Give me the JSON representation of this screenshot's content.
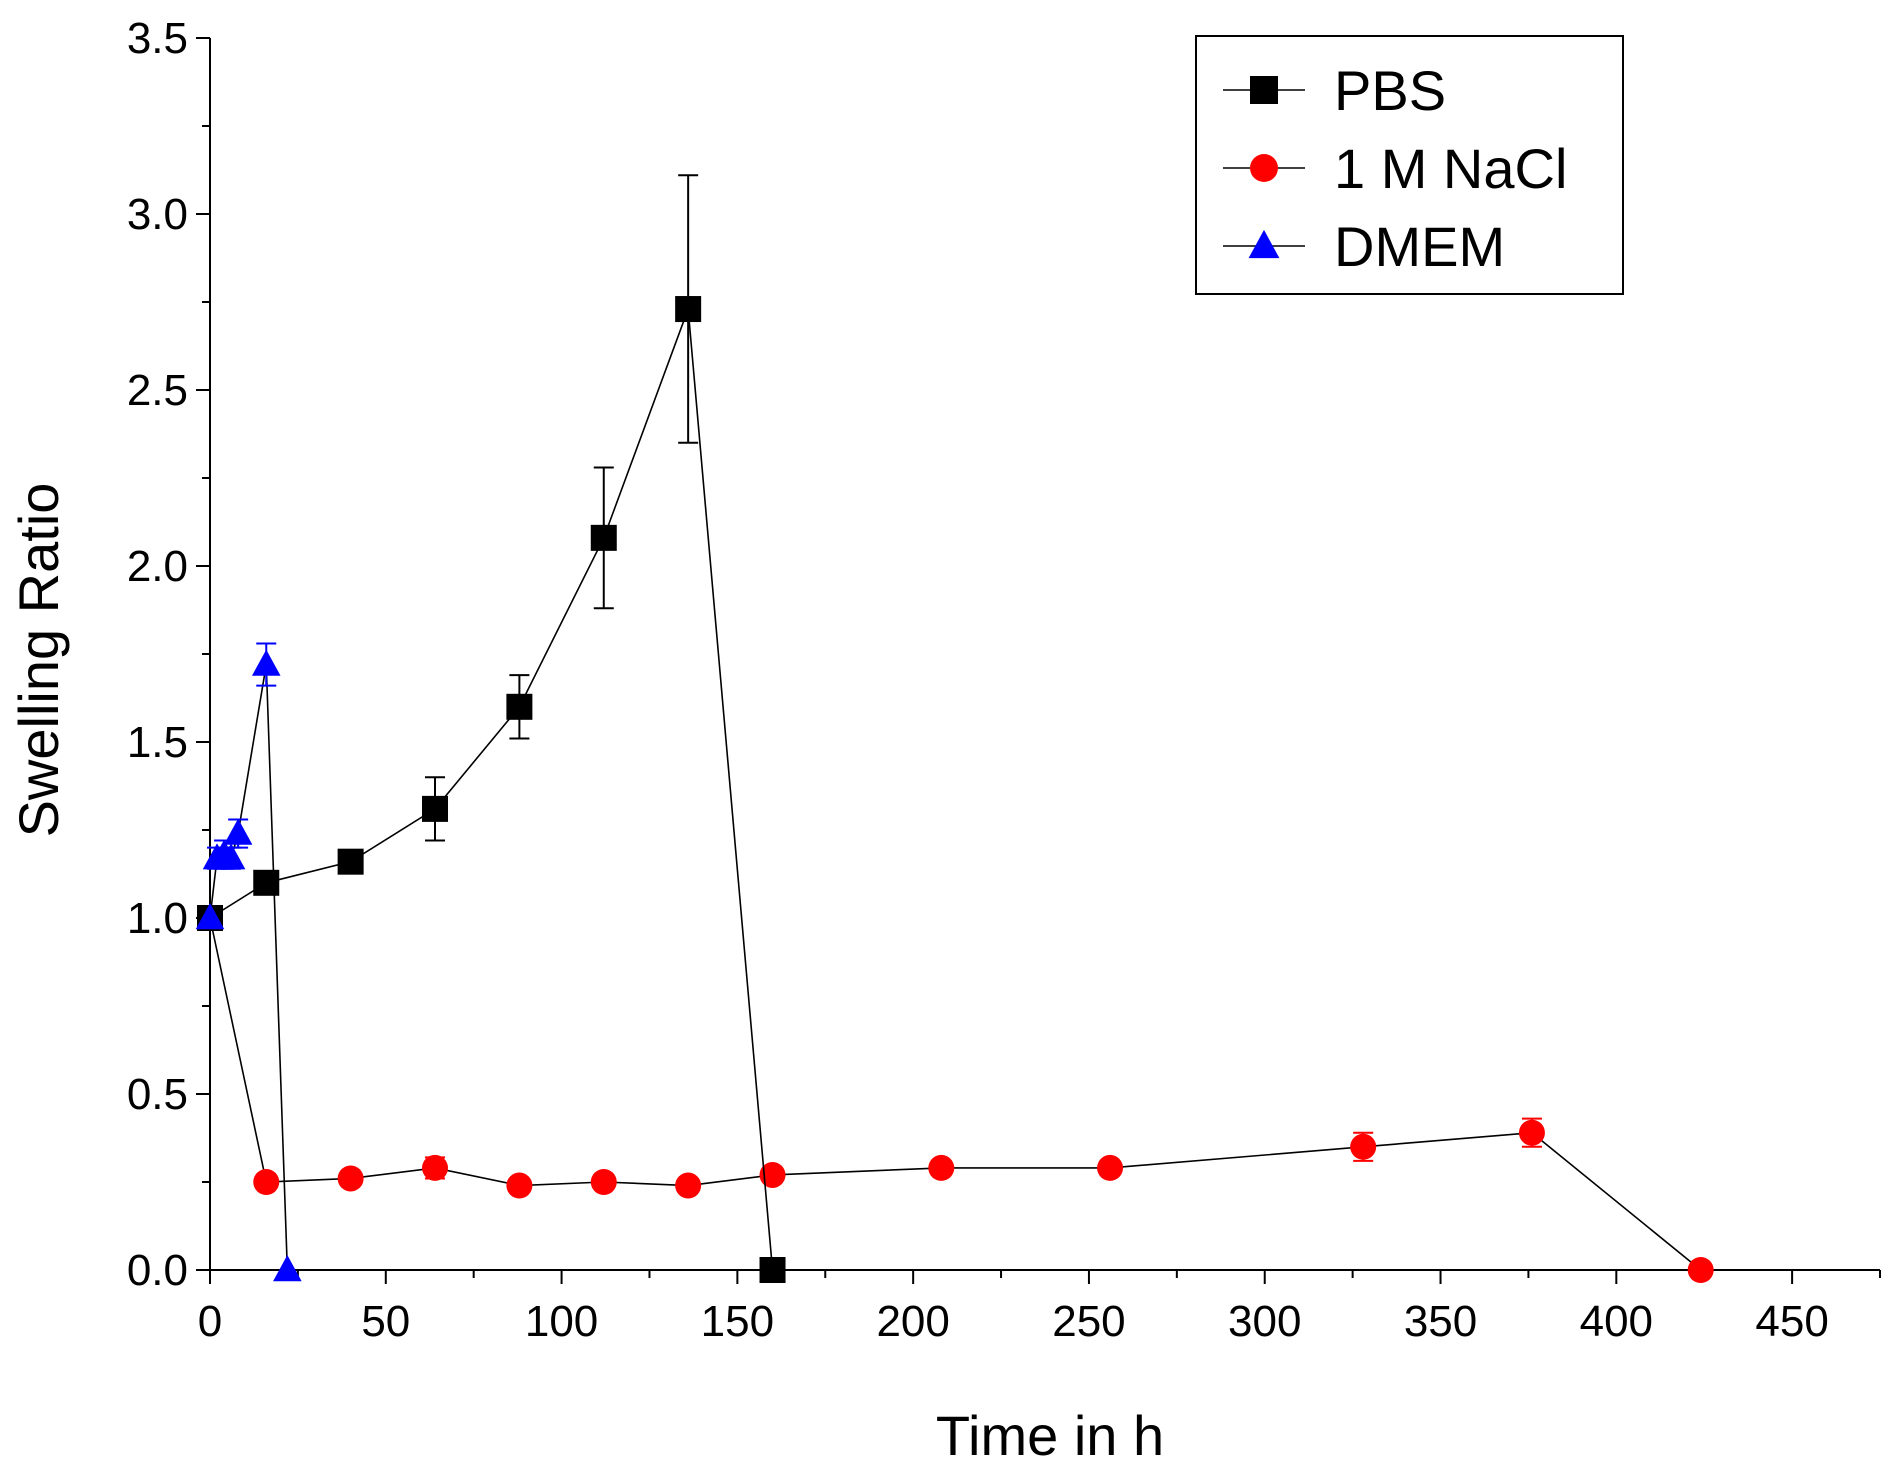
{
  "chart_data": {
    "type": "line",
    "title": "",
    "xlabel": "Time in h",
    "ylabel": "Swelling Ratio",
    "xlim": [
      0,
      475
    ],
    "ylim": [
      0,
      3.5
    ],
    "xticks": [
      0,
      50,
      100,
      150,
      200,
      250,
      300,
      350,
      400,
      450
    ],
    "xtick_labels": [
      "0",
      "50",
      "100",
      "150",
      "200",
      "250",
      "300",
      "350",
      "400",
      "450"
    ],
    "yticks": [
      0,
      0.5,
      1.0,
      1.5,
      2.0,
      2.5,
      3.0,
      3.5
    ],
    "ytick_labels": [
      "0.0",
      "0.5",
      "1.0",
      "1.5",
      "2.0",
      "2.5",
      "3.0",
      "3.5"
    ],
    "legend_position": "top-right",
    "series": [
      {
        "name": "PBS",
        "color": "#000000",
        "marker": "square",
        "x": [
          0,
          16,
          40,
          64,
          88,
          112,
          136,
          160
        ],
        "y": [
          1.0,
          1.1,
          1.16,
          1.31,
          1.6,
          2.08,
          2.73,
          0.0
        ],
        "err": [
          0,
          0,
          0,
          0.09,
          0.09,
          0.2,
          0.38,
          0
        ]
      },
      {
        "name": "1 M NaCl",
        "color": "#ff0000",
        "marker": "circle",
        "x": [
          0,
          16,
          40,
          64,
          88,
          112,
          136,
          160,
          208,
          256,
          328,
          376,
          424
        ],
        "y": [
          1.0,
          0.25,
          0.26,
          0.29,
          0.24,
          0.25,
          0.24,
          0.27,
          0.29,
          0.29,
          0.35,
          0.39,
          0.0
        ],
        "err": [
          0,
          0,
          0,
          0.03,
          0,
          0,
          0,
          0,
          0,
          0,
          0.04,
          0.04,
          0
        ]
      },
      {
        "name": "DMEM",
        "color": "#0000ff",
        "marker": "triangle",
        "x": [
          0,
          2,
          4,
          6,
          8,
          16,
          22
        ],
        "y": [
          1.0,
          1.17,
          1.18,
          1.17,
          1.24,
          1.72,
          0.0
        ],
        "err": [
          0,
          0.03,
          0.04,
          0.03,
          0.04,
          0.06,
          0
        ]
      }
    ]
  }
}
